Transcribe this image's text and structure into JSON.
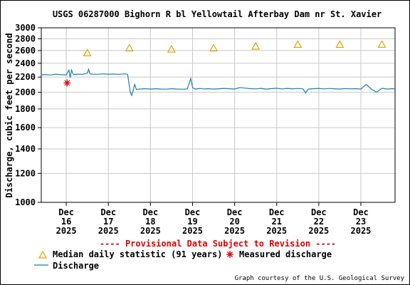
{
  "chart_data": {
    "type": "line",
    "title": "USGS 06287000 Bighorn R bl Yellowtail Afterbay Dam nr St. Xavier",
    "ylabel": "Discharge, cubic feet per second",
    "xlabel": "",
    "y_scale": "log",
    "ylim": [
      1000,
      3000
    ],
    "y_ticks": [
      1000,
      1200,
      1400,
      1600,
      1800,
      2000,
      2200,
      2400,
      2600,
      2800,
      3000
    ],
    "y_tick_labels": [
      "1000",
      "1200",
      "1400",
      "1600",
      "1800",
      "2000",
      "2200",
      "2400",
      "2600",
      "2800",
      "3000"
    ],
    "xlim": [
      "2025-12-15T09:45",
      "2025-12-23T19:30"
    ],
    "x_ticks": [
      {
        "date": "2025-12-16",
        "label": [
          "Dec",
          "16",
          "2025"
        ]
      },
      {
        "date": "2025-12-17",
        "label": [
          "Dec",
          "17",
          "2025"
        ]
      },
      {
        "date": "2025-12-18",
        "label": [
          "Dec",
          "18",
          "2025"
        ]
      },
      {
        "date": "2025-12-19",
        "label": [
          "Dec",
          "19",
          "2025"
        ]
      },
      {
        "date": "2025-12-20",
        "label": [
          "Dec",
          "20",
          "2025"
        ]
      },
      {
        "date": "2025-12-21",
        "label": [
          "Dec",
          "21",
          "2025"
        ]
      },
      {
        "date": "2025-12-22",
        "label": [
          "Dec",
          "22",
          "2025"
        ]
      },
      {
        "date": "2025-12-23",
        "label": [
          "Dec",
          "23",
          "2025"
        ]
      }
    ],
    "grid": true,
    "note": "---- Provisional Data Subject to Revision ----",
    "credit": "Graph courtesy of the U.S. Geological Survey",
    "colors": {
      "discharge": "#1f7fa8",
      "median": "#e8a000",
      "measured": "#dd0000",
      "note": "#dd0000"
    },
    "series": [
      {
        "name": "Discharge",
        "kind": "line",
        "x": [
          "2025-12-15T09:45",
          "2025-12-15T12:00",
          "2025-12-15T15:00",
          "2025-12-15T18:00",
          "2025-12-15T21:00",
          "2025-12-16T00:00",
          "2025-12-16T01:30",
          "2025-12-16T02:15",
          "2025-12-16T03:00",
          "2025-12-16T04:00",
          "2025-12-16T06:00",
          "2025-12-16T09:00",
          "2025-12-16T12:00",
          "2025-12-16T12:45",
          "2025-12-16T13:30",
          "2025-12-16T15:00",
          "2025-12-16T18:00",
          "2025-12-16T21:00",
          "2025-12-17T00:00",
          "2025-12-17T03:00",
          "2025-12-17T06:00",
          "2025-12-17T09:00",
          "2025-12-17T11:00",
          "2025-12-17T12:30",
          "2025-12-17T13:15",
          "2025-12-17T14:00",
          "2025-12-17T15:00",
          "2025-12-17T16:00",
          "2025-12-17T18:00",
          "2025-12-17T21:00",
          "2025-12-18T00:00",
          "2025-12-18T03:00",
          "2025-12-18T06:00",
          "2025-12-18T09:00",
          "2025-12-18T12:00",
          "2025-12-18T15:00",
          "2025-12-18T18:00",
          "2025-12-18T21:00",
          "2025-12-18T23:00",
          "2025-12-19T00:00",
          "2025-12-19T01:00",
          "2025-12-19T02:00",
          "2025-12-19T04:00",
          "2025-12-19T06:00",
          "2025-12-19T09:00",
          "2025-12-19T12:00",
          "2025-12-19T15:00",
          "2025-12-19T18:00",
          "2025-12-19T21:00",
          "2025-12-20T00:00",
          "2025-12-20T03:00",
          "2025-12-20T06:00",
          "2025-12-20T09:00",
          "2025-12-20T12:00",
          "2025-12-20T15:00",
          "2025-12-20T18:00",
          "2025-12-20T21:00",
          "2025-12-21T00:00",
          "2025-12-21T03:00",
          "2025-12-21T06:00",
          "2025-12-21T09:00",
          "2025-12-21T12:00",
          "2025-12-21T15:00",
          "2025-12-21T16:30",
          "2025-12-21T18:00",
          "2025-12-21T21:00",
          "2025-12-22T00:00",
          "2025-12-22T03:00",
          "2025-12-22T06:00",
          "2025-12-22T09:00",
          "2025-12-22T12:00",
          "2025-12-22T15:00",
          "2025-12-22T18:00",
          "2025-12-22T21:00",
          "2025-12-23T00:00",
          "2025-12-23T03:00",
          "2025-12-23T06:00",
          "2025-12-23T09:00",
          "2025-12-23T12:00",
          "2025-12-23T15:00",
          "2025-12-23T18:00",
          "2025-12-23T19:30"
        ],
        "y": [
          2230,
          2235,
          2228,
          2240,
          2232,
          2230,
          2300,
          2190,
          2300,
          2235,
          2240,
          2238,
          2255,
          2310,
          2245,
          2240,
          2238,
          2245,
          2240,
          2243,
          2238,
          2245,
          2238,
          2000,
          1960,
          2010,
          2100,
          2035,
          2040,
          2045,
          2040,
          2045,
          2040,
          2038,
          2045,
          2040,
          2038,
          2042,
          2180,
          2060,
          2045,
          2040,
          2048,
          2042,
          2045,
          2040,
          2044,
          2048,
          2045,
          2040,
          2060,
          2052,
          2045,
          2043,
          2048,
          2040,
          2046,
          2050,
          2042,
          2048,
          2044,
          2047,
          2043,
          1990,
          2040,
          2045,
          2048,
          2042,
          2047,
          2044,
          2040,
          2046,
          2043,
          2045,
          2040,
          2100,
          2040,
          2000,
          2050,
          2040,
          2045,
          2043
        ]
      },
      {
        "name": "Median daily statistic (91 years)",
        "kind": "marker",
        "x": [
          "2025-12-16",
          "2025-12-17",
          "2025-12-18",
          "2025-12-19",
          "2025-12-20",
          "2025-12-21",
          "2025-12-22",
          "2025-12-23"
        ],
        "y": [
          2560,
          2640,
          2620,
          2640,
          2670,
          2700,
          2700,
          2700
        ]
      },
      {
        "name": "Measured discharge",
        "kind": "marker",
        "x": [
          "2025-12-16T00:30"
        ],
        "y": [
          2120
        ]
      }
    ],
    "legend": {
      "position": "bottom",
      "entries": [
        {
          "label": "Median daily statistic (91 years)"
        },
        {
          "label": "Measured discharge"
        },
        {
          "label": "Discharge"
        }
      ]
    }
  }
}
